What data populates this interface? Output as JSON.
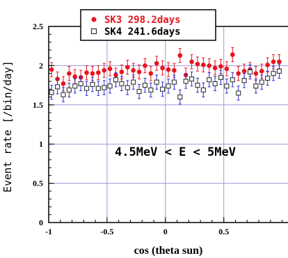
{
  "chart_data": {
    "type": "scatter",
    "xlabel": "cos (theta sun)",
    "ylabel": "Event rate [/bin/day]",
    "xlim": [
      -1,
      1
    ],
    "ylim": [
      0,
      2.5
    ],
    "x_ticks": [
      "-1",
      "-0.5",
      "0",
      "0.5"
    ],
    "y_ticks": [
      "0",
      "0.5",
      "1",
      "1.5",
      "2",
      "2.5"
    ],
    "grid": true,
    "legend_position": "top-center",
    "annotation": "4.5MeV < E < 5MeV",
    "x": [
      -0.975,
      -0.925,
      -0.875,
      -0.825,
      -0.775,
      -0.725,
      -0.675,
      -0.625,
      -0.575,
      -0.525,
      -0.475,
      -0.425,
      -0.375,
      -0.325,
      -0.275,
      -0.225,
      -0.175,
      -0.125,
      -0.075,
      -0.025,
      0.025,
      0.075,
      0.125,
      0.175,
      0.225,
      0.275,
      0.325,
      0.375,
      0.425,
      0.475,
      0.525,
      0.575,
      0.625,
      0.675,
      0.725,
      0.775,
      0.825,
      0.875,
      0.925,
      0.975
    ],
    "series": [
      {
        "name": "SK3 298.2days",
        "color": "#e8141e",
        "marker": "filled-circle",
        "values": [
          1.95,
          1.83,
          1.77,
          1.9,
          1.86,
          1.85,
          1.91,
          1.9,
          1.91,
          1.94,
          1.96,
          1.88,
          1.92,
          1.98,
          1.94,
          1.92,
          2.0,
          1.9,
          2.03,
          1.97,
          1.95,
          1.94,
          2.13,
          1.88,
          2.05,
          2.02,
          2.01,
          2.0,
          1.97,
          1.99,
          1.96,
          2.14,
          1.9,
          1.93,
          1.95,
          1.9,
          1.93,
          2.01,
          2.05,
          2.05
        ],
        "errors": [
          0.09,
          0.09,
          0.09,
          0.09,
          0.09,
          0.09,
          0.09,
          0.09,
          0.09,
          0.09,
          0.09,
          0.09,
          0.09,
          0.09,
          0.09,
          0.09,
          0.09,
          0.09,
          0.09,
          0.09,
          0.09,
          0.09,
          0.09,
          0.09,
          0.09,
          0.09,
          0.09,
          0.09,
          0.09,
          0.09,
          0.09,
          0.09,
          0.09,
          0.09,
          0.09,
          0.09,
          0.09,
          0.09,
          0.09,
          0.09
        ]
      },
      {
        "name": "SK4 241.6days",
        "color": "#333333",
        "marker": "open-square",
        "values": [
          1.66,
          1.73,
          1.63,
          1.69,
          1.74,
          1.77,
          1.71,
          1.76,
          1.71,
          1.72,
          1.74,
          1.82,
          1.77,
          1.72,
          1.79,
          1.67,
          1.75,
          1.69,
          1.79,
          1.7,
          1.74,
          1.79,
          1.6,
          1.8,
          1.83,
          1.75,
          1.69,
          1.82,
          1.77,
          1.85,
          1.74,
          1.82,
          1.65,
          1.81,
          1.92,
          1.74,
          1.79,
          1.84,
          1.9,
          1.93
        ],
        "errors": [
          0.09,
          0.09,
          0.09,
          0.09,
          0.09,
          0.09,
          0.09,
          0.09,
          0.09,
          0.09,
          0.09,
          0.09,
          0.09,
          0.09,
          0.09,
          0.09,
          0.09,
          0.09,
          0.09,
          0.09,
          0.09,
          0.09,
          0.09,
          0.09,
          0.09,
          0.09,
          0.09,
          0.09,
          0.09,
          0.09,
          0.09,
          0.09,
          0.09,
          0.09,
          0.09,
          0.09,
          0.09,
          0.09,
          0.09,
          0.09
        ]
      }
    ]
  }
}
